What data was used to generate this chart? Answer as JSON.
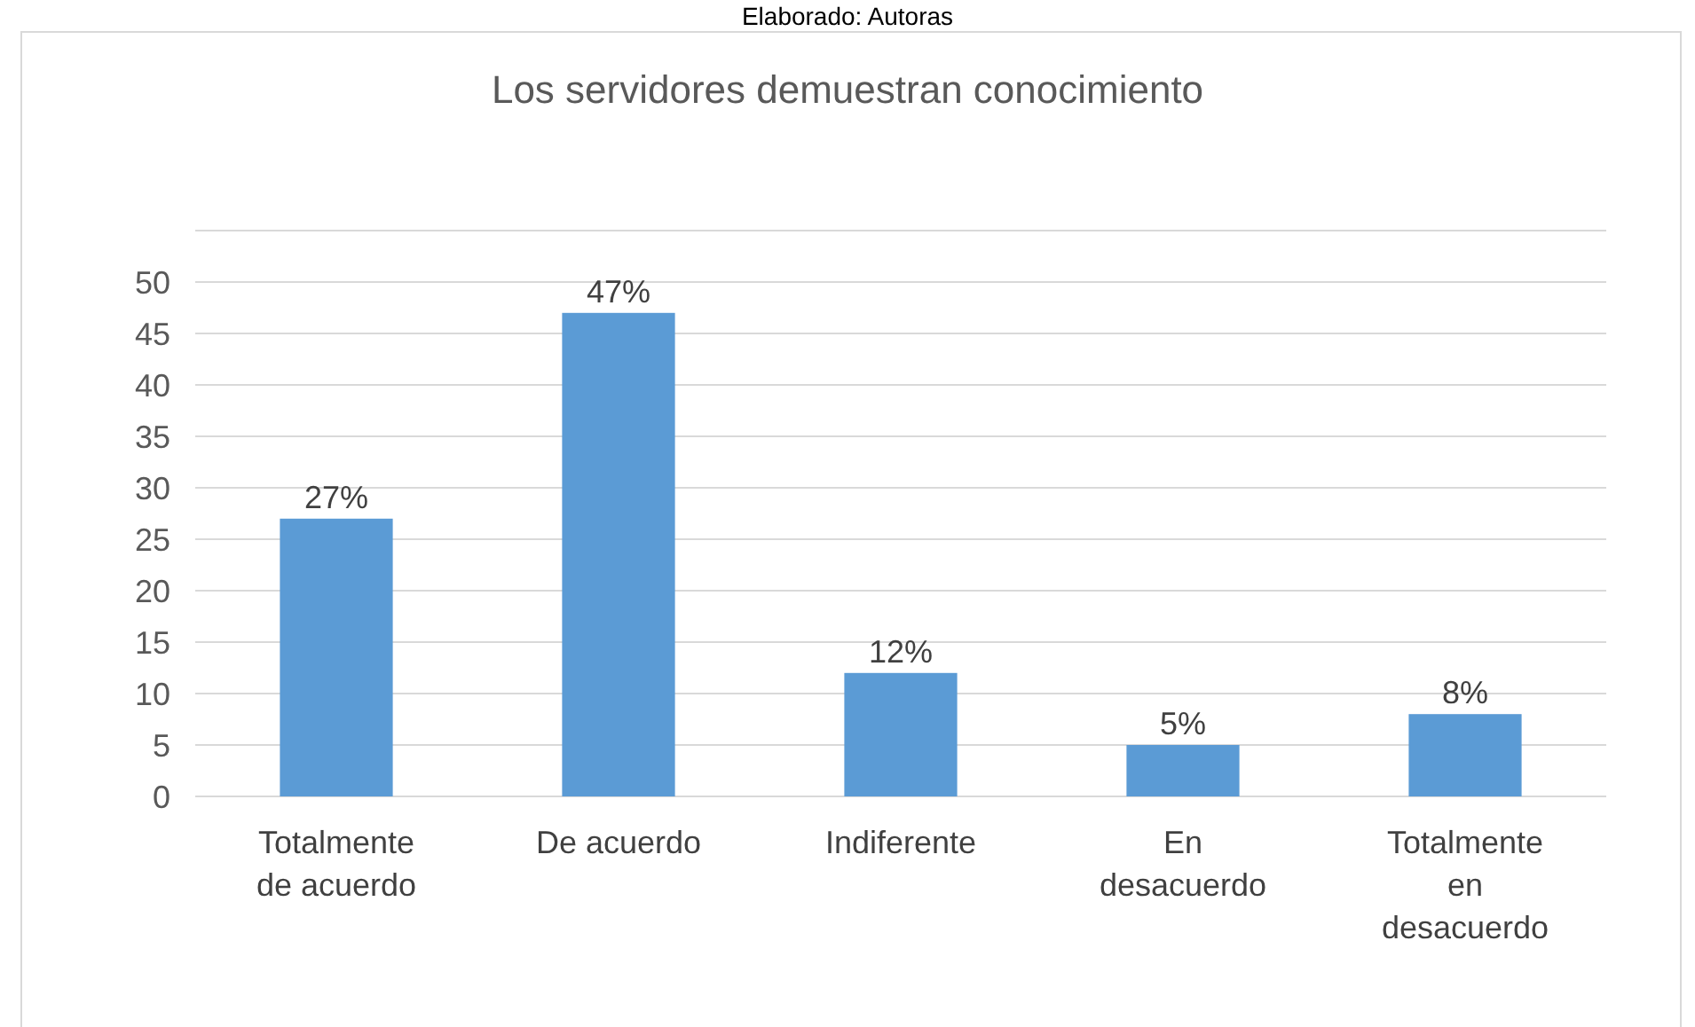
{
  "chart_data": {
    "type": "bar",
    "title": "Los servidores demuestran conocimiento",
    "annotations": [
      "Elaborado: Autoras"
    ],
    "categories": [
      "Totalmente de acuerdo",
      "De acuerdo",
      "Indiferente",
      "En desacuerdo",
      "Totalmente en desacuerdo"
    ],
    "values": [
      27,
      47,
      12,
      5,
      8
    ],
    "value_labels": [
      "27%",
      "47%",
      "12%",
      "5%",
      "8%"
    ],
    "color": "#5b9bd5",
    "ylim": [
      0,
      55
    ],
    "yticks": [
      0,
      5,
      10,
      15,
      20,
      25,
      30,
      35,
      40,
      45,
      50,
      {
        "value": 55,
        "label": null
      }
    ],
    "grid": true
  }
}
